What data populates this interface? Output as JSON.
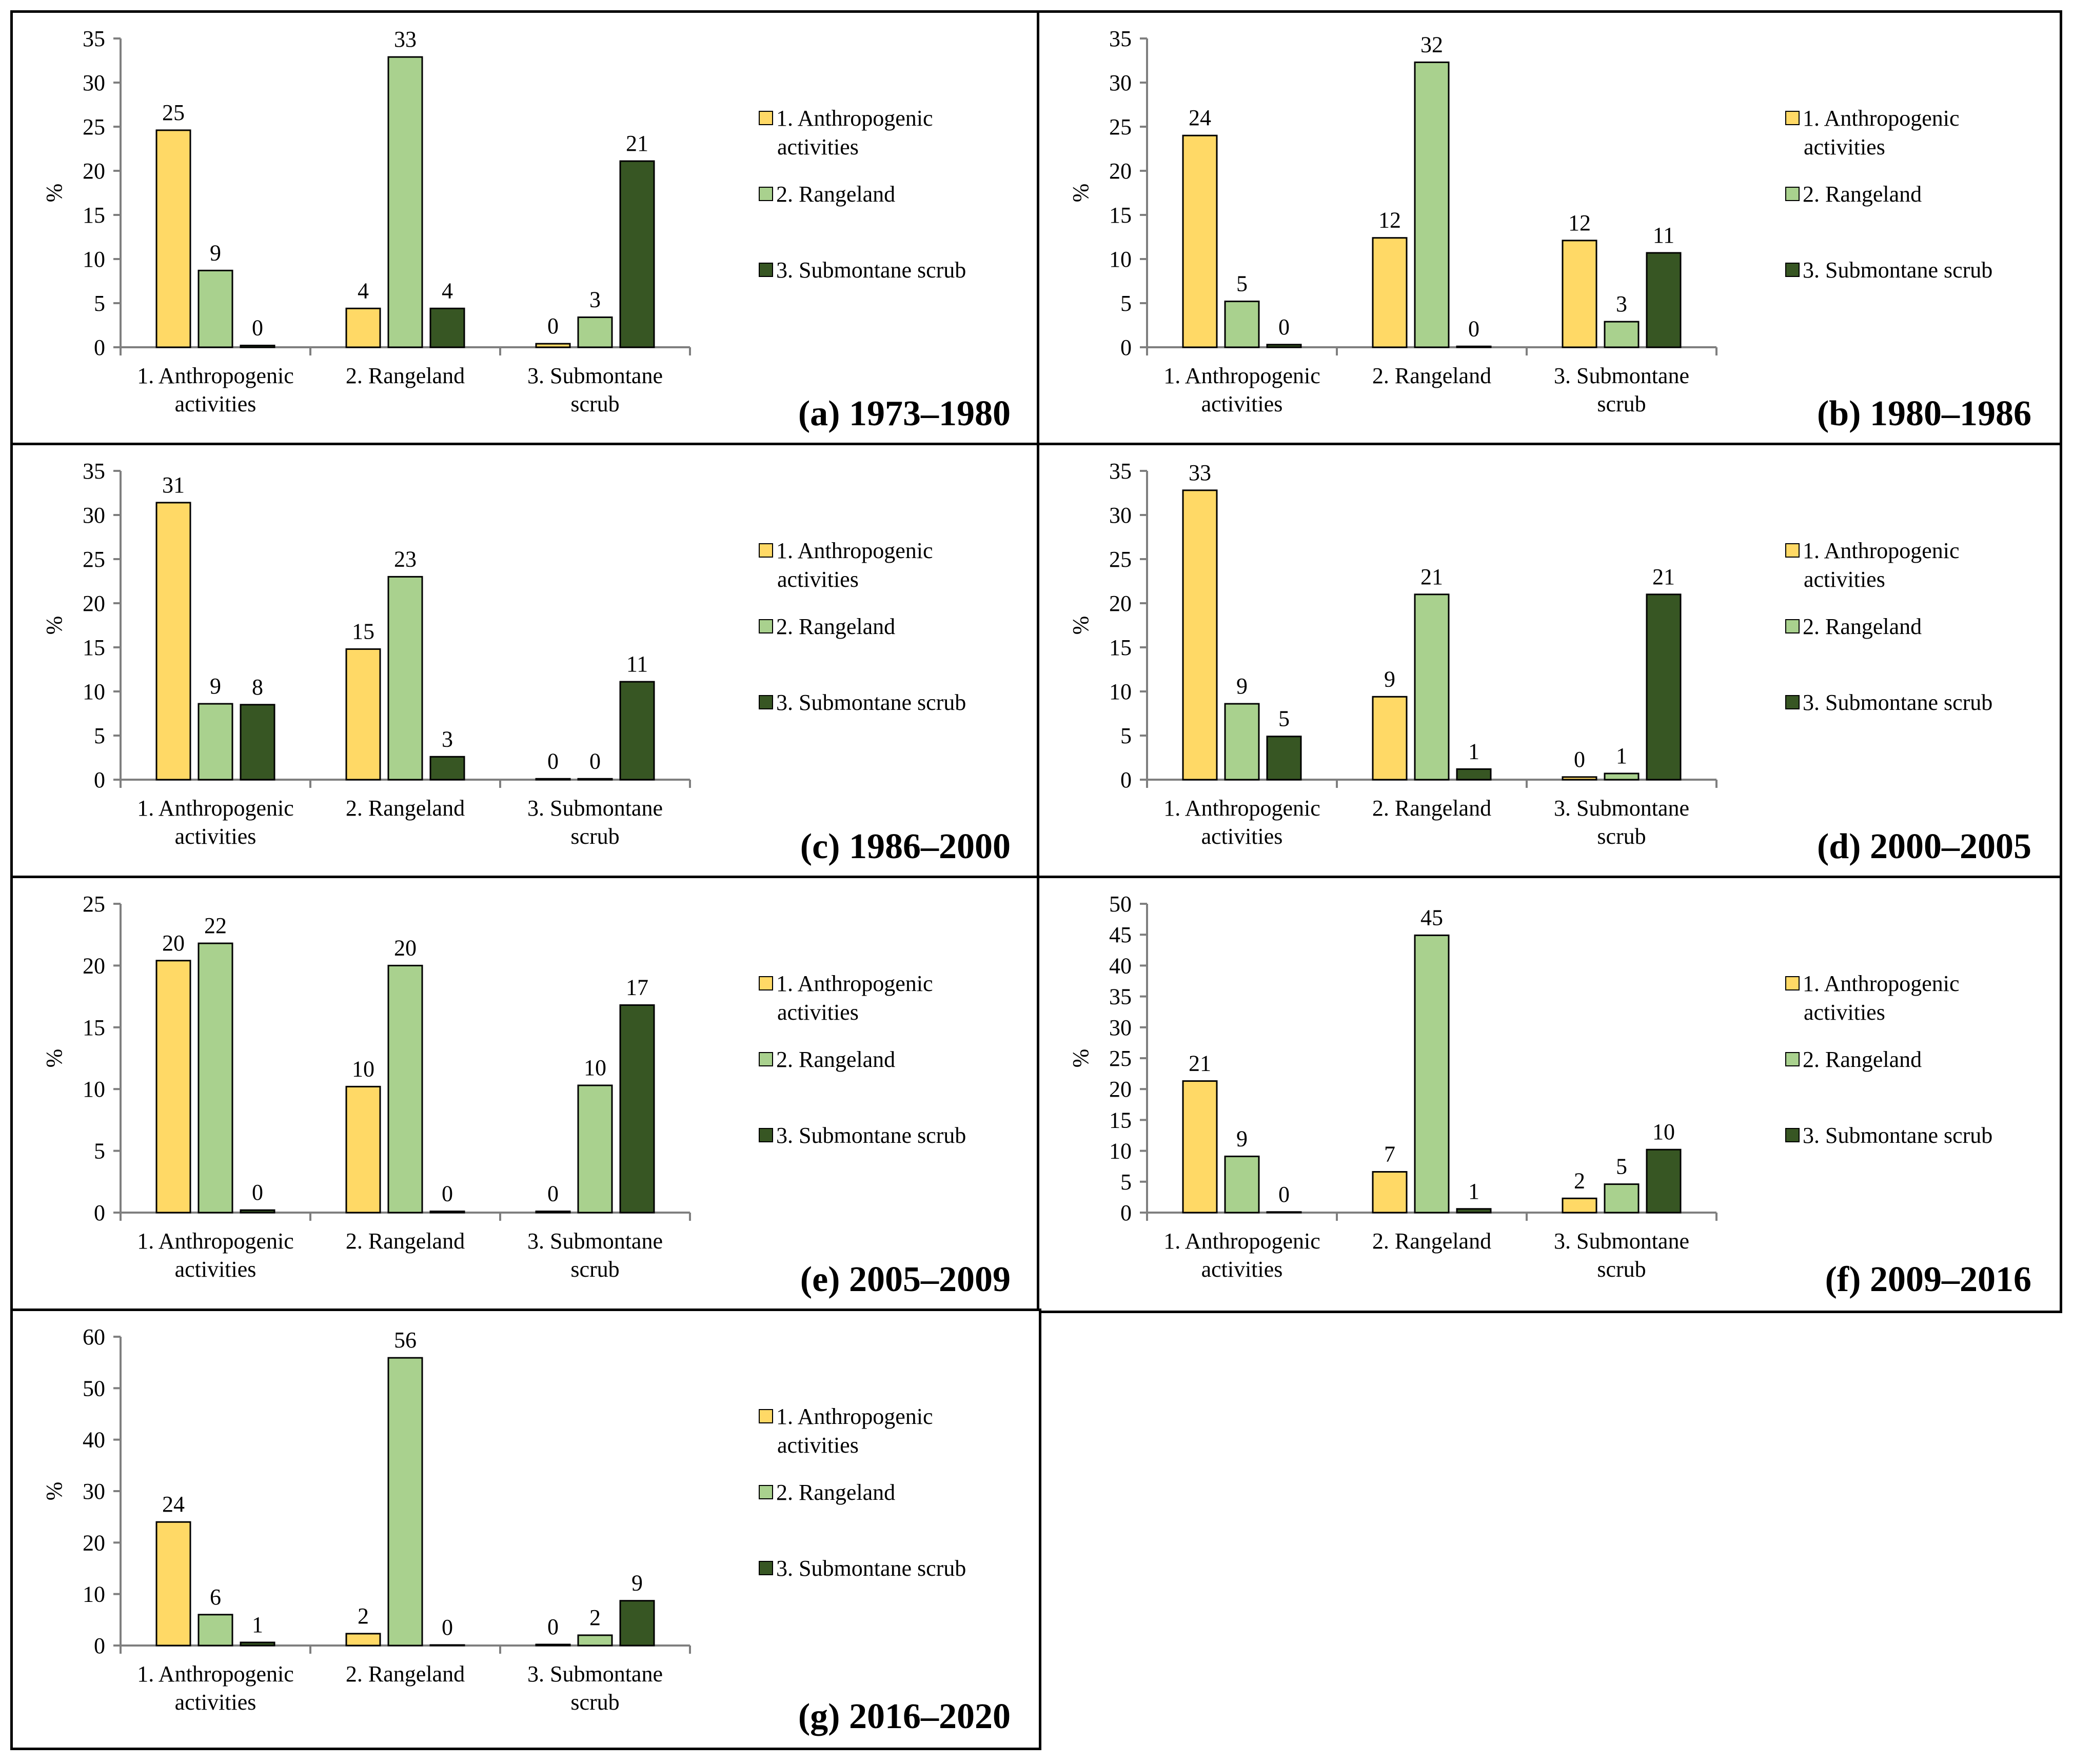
{
  "colors": {
    "anthropogenic": "#FFD966",
    "rangeland": "#A9D18E",
    "submontane": "#375623",
    "bar_outline": "#000000",
    "axis": "#7f7f7f"
  },
  "legend": [
    {
      "lines": [
        "1. Anthropogenic",
        "activities"
      ],
      "color_key": "anthropogenic"
    },
    {
      "lines": [
        "2. Rangeland"
      ],
      "color_key": "rangeland"
    },
    {
      "lines": [
        "3. Submontane scrub"
      ],
      "color_key": "submontane"
    }
  ],
  "chart_data": [
    {
      "type": "bar",
      "title": "(a) 1973–1980",
      "ylabel": "%",
      "ylim": [
        0,
        35
      ],
      "yticks": [
        0,
        5,
        10,
        15,
        20,
        25,
        30,
        35
      ],
      "categories": [
        [
          "1. Anthropogenic",
          "activities"
        ],
        [
          "2. Rangeland"
        ],
        [
          "3. Submontane",
          "scrub"
        ]
      ],
      "series": [
        {
          "color_key": "anthropogenic",
          "values": [
            24.6,
            4.4,
            0.4
          ],
          "labels": [
            "25",
            "4",
            "0"
          ]
        },
        {
          "color_key": "rangeland",
          "values": [
            8.7,
            32.9,
            3.4
          ],
          "labels": [
            "9",
            "33",
            "3"
          ]
        },
        {
          "color_key": "submontane",
          "values": [
            0.2,
            4.4,
            21.1
          ],
          "labels": [
            "0",
            "4",
            "21"
          ]
        }
      ]
    },
    {
      "type": "bar",
      "title": "(b) 1980–1986",
      "ylabel": "%",
      "ylim": [
        0,
        35
      ],
      "yticks": [
        0,
        5,
        10,
        15,
        20,
        25,
        30,
        35
      ],
      "categories": [
        [
          "1. Anthropogenic",
          "activities"
        ],
        [
          "2. Rangeland"
        ],
        [
          "3. Submontane",
          "scrub"
        ]
      ],
      "series": [
        {
          "color_key": "anthropogenic",
          "values": [
            24.0,
            12.4,
            12.1
          ],
          "labels": [
            "24",
            "12",
            "12"
          ]
        },
        {
          "color_key": "rangeland",
          "values": [
            5.2,
            32.3,
            2.9
          ],
          "labels": [
            "5",
            "32",
            "3"
          ]
        },
        {
          "color_key": "submontane",
          "values": [
            0.3,
            0.1,
            10.7
          ],
          "labels": [
            "0",
            "0",
            "11"
          ]
        }
      ]
    },
    {
      "type": "bar",
      "title": "(c) 1986–2000",
      "ylabel": "%",
      "ylim": [
        0,
        35
      ],
      "yticks": [
        0,
        5,
        10,
        15,
        20,
        25,
        30,
        35
      ],
      "categories": [
        [
          "1. Anthropogenic",
          "activities"
        ],
        [
          "2. Rangeland"
        ],
        [
          "3. Submontane",
          "scrub"
        ]
      ],
      "series": [
        {
          "color_key": "anthropogenic",
          "values": [
            31.4,
            14.8,
            0.1
          ],
          "labels": [
            "31",
            "15",
            "0"
          ]
        },
        {
          "color_key": "rangeland",
          "values": [
            8.6,
            23.0,
            0.1
          ],
          "labels": [
            "9",
            "23",
            "0"
          ]
        },
        {
          "color_key": "submontane",
          "values": [
            8.5,
            2.6,
            11.1
          ],
          "labels": [
            "8",
            "3",
            "11"
          ]
        }
      ]
    },
    {
      "type": "bar",
      "title": "(d) 2000–2005",
      "ylabel": "%",
      "ylim": [
        0,
        35
      ],
      "yticks": [
        0,
        5,
        10,
        15,
        20,
        25,
        30,
        35
      ],
      "categories": [
        [
          "1. Anthropogenic",
          "activities"
        ],
        [
          "2. Rangeland"
        ],
        [
          "3. Submontane",
          "scrub"
        ]
      ],
      "series": [
        {
          "color_key": "anthropogenic",
          "values": [
            32.8,
            9.4,
            0.3
          ],
          "labels": [
            "33",
            "9",
            "0"
          ]
        },
        {
          "color_key": "rangeland",
          "values": [
            8.6,
            21.0,
            0.7
          ],
          "labels": [
            "9",
            "21",
            "1"
          ]
        },
        {
          "color_key": "submontane",
          "values": [
            4.9,
            1.2,
            21.0
          ],
          "labels": [
            "5",
            "1",
            "21"
          ]
        }
      ]
    },
    {
      "type": "bar",
      "title": "(e) 2005–2009",
      "ylabel": "%",
      "ylim": [
        0,
        25
      ],
      "yticks": [
        0,
        5,
        10,
        15,
        20,
        25
      ],
      "categories": [
        [
          "1. Anthropogenic",
          "activities"
        ],
        [
          "2. Rangeland"
        ],
        [
          "3. Submontane",
          "scrub"
        ]
      ],
      "series": [
        {
          "color_key": "anthropogenic",
          "values": [
            20.4,
            10.2,
            0.1
          ],
          "labels": [
            "20",
            "10",
            "0"
          ]
        },
        {
          "color_key": "rangeland",
          "values": [
            21.8,
            20.0,
            10.3
          ],
          "labels": [
            "22",
            "20",
            "10"
          ]
        },
        {
          "color_key": "submontane",
          "values": [
            0.2,
            0.1,
            16.8
          ],
          "labels": [
            "0",
            "0",
            "17"
          ]
        }
      ]
    },
    {
      "type": "bar",
      "title": "(f) 2009–2016",
      "ylabel": "%",
      "ylim": [
        0,
        50
      ],
      "yticks": [
        0,
        5,
        10,
        15,
        20,
        25,
        30,
        35,
        40,
        45,
        50
      ],
      "categories": [
        [
          "1. Anthropogenic",
          "activities"
        ],
        [
          "2. Rangeland"
        ],
        [
          "3. Submontane",
          "scrub"
        ]
      ],
      "series": [
        {
          "color_key": "anthropogenic",
          "values": [
            21.3,
            6.6,
            2.3
          ],
          "labels": [
            "21",
            "7",
            "2"
          ]
        },
        {
          "color_key": "rangeland",
          "values": [
            9.1,
            44.9,
            4.6
          ],
          "labels": [
            "9",
            "45",
            "5"
          ]
        },
        {
          "color_key": "submontane",
          "values": [
            0.1,
            0.6,
            10.2
          ],
          "labels": [
            "0",
            "1",
            "10"
          ]
        }
      ]
    },
    {
      "type": "bar",
      "title": "(g) 2016–2020",
      "ylabel": "%",
      "ylim": [
        0,
        60
      ],
      "yticks": [
        0,
        10,
        20,
        30,
        40,
        50,
        60
      ],
      "categories": [
        [
          "1. Anthropogenic",
          "activities"
        ],
        [
          "2. Rangeland"
        ],
        [
          "3. Submontane",
          "scrub"
        ]
      ],
      "series": [
        {
          "color_key": "anthropogenic",
          "values": [
            24.0,
            2.3,
            0.2
          ],
          "labels": [
            "24",
            "2",
            "0"
          ]
        },
        {
          "color_key": "rangeland",
          "values": [
            6.0,
            55.9,
            2.0
          ],
          "labels": [
            "6",
            "56",
            "2"
          ]
        },
        {
          "color_key": "submontane",
          "values": [
            0.6,
            0.1,
            8.7
          ],
          "labels": [
            "1",
            "0",
            "9"
          ]
        }
      ]
    }
  ]
}
